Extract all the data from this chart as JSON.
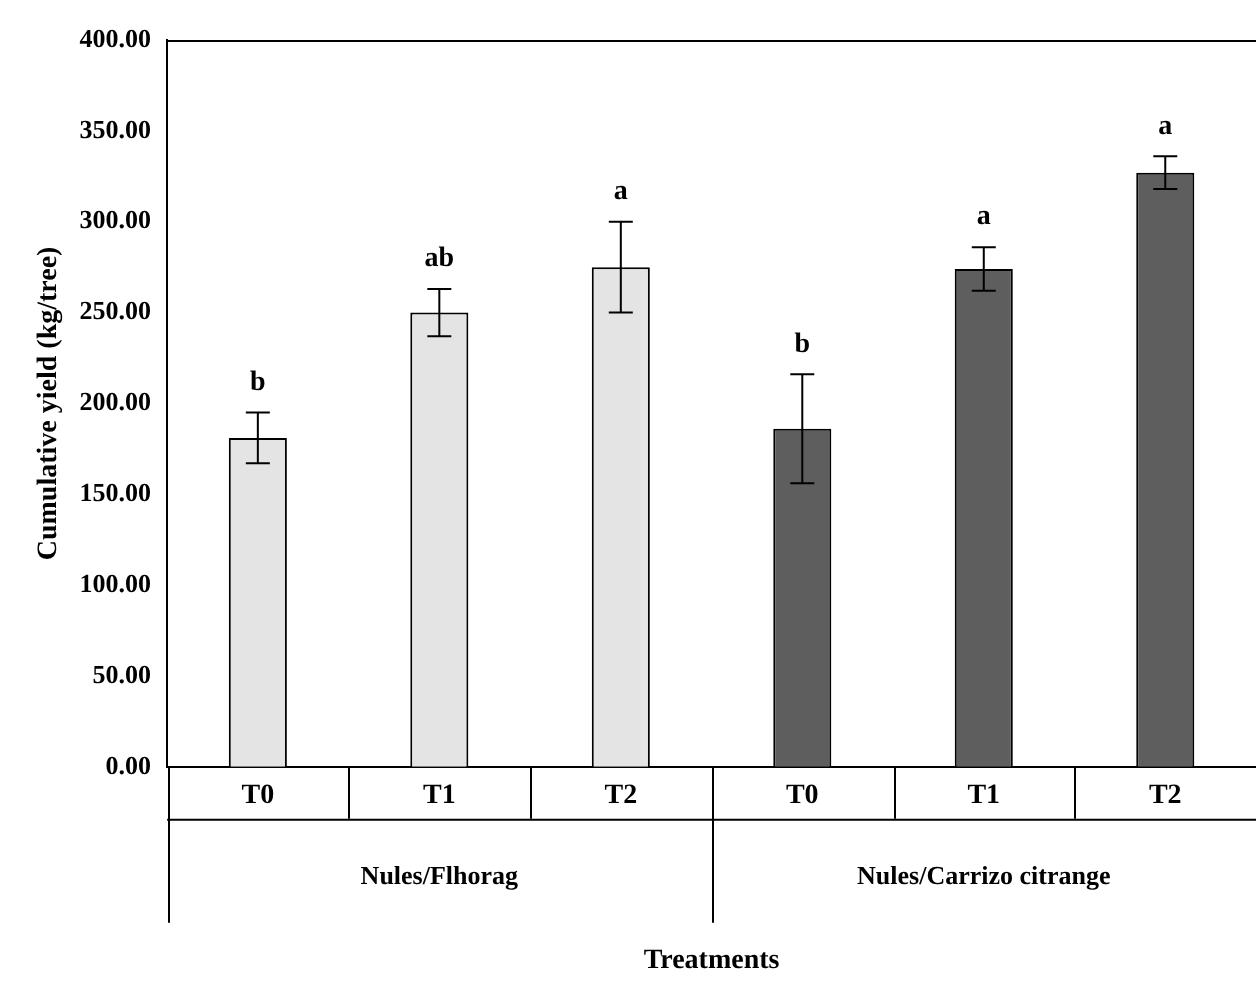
{
  "chart_data": {
    "type": "bar",
    "xlabel": "Treatments",
    "ylabel": "Cumulative yield (kg/tree)",
    "categories": [
      "T0",
      "T1",
      "T2",
      "T0",
      "T1",
      "T2"
    ],
    "values": [
      181,
      250,
      275,
      186,
      274,
      327
    ],
    "errors": [
      14,
      13,
      25,
      30,
      12,
      9
    ],
    "colors": [
      "#e4e4e4",
      "#e4e4e4",
      "#e4e4e4",
      "#5e5e5e",
      "#5e5e5e",
      "#5e5e5e"
    ],
    "value_labels": [
      "b",
      "ab",
      "a",
      "b",
      "a",
      "a"
    ],
    "annotations": [
      "Nules/Flhorag",
      "Nules/Carrizo citrange"
    ],
    "ylim": [
      0,
      400
    ],
    "yticks": [
      {
        "value": 0,
        "label": "0.00"
      },
      {
        "value": 50,
        "label": "50.00"
      },
      {
        "value": 100,
        "label": "100.00"
      },
      {
        "value": 150,
        "label": "150.00"
      },
      {
        "value": 200,
        "label": "200.00"
      },
      {
        "value": 250,
        "label": "250.00"
      },
      {
        "value": 300,
        "label": "300.00"
      },
      {
        "value": 350,
        "label": "350.00"
      },
      {
        "value": 400,
        "label": "400.00"
      }
    ],
    "grid": false,
    "legend": false
  }
}
